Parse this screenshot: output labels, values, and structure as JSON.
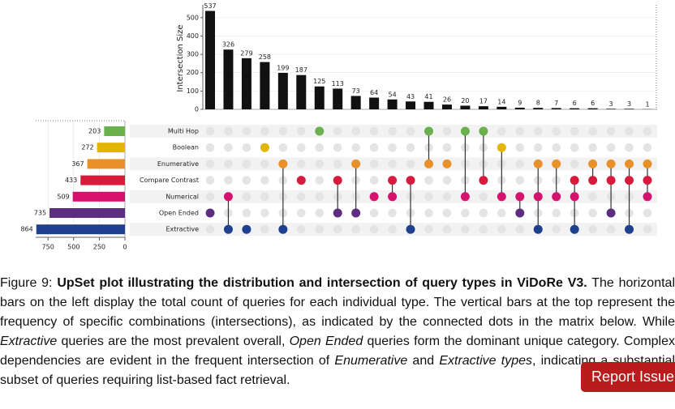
{
  "chart_data": {
    "type": "upset",
    "y_label": "Intersection Size",
    "ylim": [
      0,
      570
    ],
    "yticks": [
      0,
      100,
      200,
      300,
      400,
      500
    ],
    "xlim": [
      0,
      870
    ],
    "xticks": [
      0,
      250,
      500,
      750
    ],
    "bar_color": "#111111",
    "inactive_color": "#e4e4e4",
    "sets": [
      {
        "name": "Multi Hop",
        "size": 203,
        "color": "#6ab04c"
      },
      {
        "name": "Boolean",
        "size": 272,
        "color": "#e3b505"
      },
      {
        "name": "Enumerative",
        "size": 367,
        "color": "#e8912a"
      },
      {
        "name": "Compare Contrast",
        "size": 433,
        "color": "#d81b3c"
      },
      {
        "name": "Numerical",
        "size": 509,
        "color": "#d6126f"
      },
      {
        "name": "Open Ended",
        "size": 735,
        "color": "#5c2d80"
      },
      {
        "name": "Extractive",
        "size": 864,
        "color": "#1f3f8f"
      }
    ],
    "intersections": {
      "values": [
        537,
        326,
        279,
        258,
        199,
        187,
        125,
        113,
        73,
        64,
        54,
        43,
        41,
        26,
        20,
        17,
        14,
        9,
        8,
        7,
        6,
        6,
        3,
        3,
        1
      ],
      "members": [
        [
          5
        ],
        [
          4,
          6
        ],
        [
          6
        ],
        [
          1
        ],
        [
          2,
          6
        ],
        [
          3
        ],
        [
          0
        ],
        [
          3,
          5
        ],
        [
          2,
          5
        ],
        [
          4
        ],
        [
          3,
          4
        ],
        [
          3,
          6
        ],
        [
          0,
          2
        ],
        [
          2
        ],
        [
          0,
          4
        ],
        [
          0,
          3
        ],
        [
          1,
          4
        ],
        [
          4,
          5
        ],
        [
          2,
          4,
          6
        ],
        [
          2,
          4
        ],
        [
          3,
          4,
          6
        ],
        [
          2,
          3
        ],
        [
          2,
          3,
          5
        ],
        [
          2,
          3,
          6
        ],
        [
          2,
          3,
          4
        ]
      ]
    }
  },
  "caption": {
    "label": "Figure 9:",
    "title": "UpSet plot illustrating the distribution and intersection of query types in ViDoRe V3.",
    "body": [
      "The horizontal bars on the left display the total count of queries for each individual type. The vertical bars at the top represent the frequency of specific combinations (intersections), as indicated by the connected dots in the matrix below. While ",
      {
        "text": "Extractive",
        "italic": true
      },
      " queries are the most prevalent overall, ",
      {
        "text": "Open Ended",
        "italic": true
      },
      " queries form the dominant unique category. Complex dependencies are evident in the frequent intersection of ",
      {
        "text": "Enumerative",
        "italic": true
      },
      " and ",
      {
        "text": "Extractive types",
        "italic": true
      },
      ", indicating a substantial subset of queries requiring list-based fact retrieval."
    ]
  },
  "report_button": "Report Issue"
}
